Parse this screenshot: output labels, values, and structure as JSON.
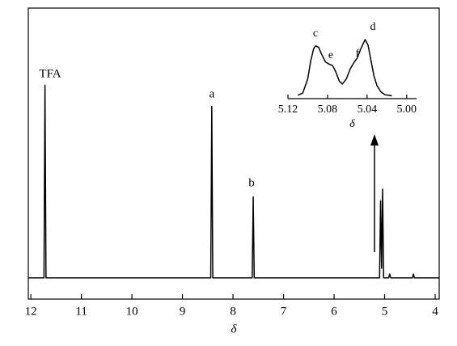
{
  "chart_data": [
    {
      "type": "line",
      "x_label": "δ",
      "x": [
        12.05,
        11.74,
        11.72,
        11.7,
        8.44,
        8.42,
        8.4,
        7.62,
        7.6,
        7.58,
        5.1,
        5.08,
        5.06,
        5.04,
        5.02,
        4.92,
        4.9,
        4.88,
        4.45,
        4.43,
        4.41,
        3.92
      ],
      "values": [
        0,
        0,
        1,
        0,
        0,
        0.89,
        0,
        0,
        0.42,
        0,
        0,
        0.4,
        0.05,
        0.46,
        0,
        0,
        0.02,
        0,
        0,
        0.02,
        0,
        0
      ],
      "color": "#000000",
      "xlim": [
        12.05,
        3.92
      ],
      "ylim": [
        -0.11,
        1.4
      ],
      "xticks": [
        12,
        11,
        10,
        9,
        8,
        7,
        6,
        5,
        4
      ],
      "annotations": [
        "TFA",
        "a",
        "b"
      ]
    },
    {
      "type": "line",
      "x_label": "δ",
      "x": [
        5.11,
        5.105,
        5.1,
        5.097,
        5.094,
        5.092,
        5.089,
        5.086,
        5.082,
        5.078,
        5.075,
        5.072,
        5.068,
        5.065,
        5.061,
        5.057,
        5.053,
        5.05,
        5.046,
        5.042,
        5.039,
        5.036,
        5.033,
        5.03,
        5.026,
        5.022,
        5.015
      ],
      "values": [
        0.01,
        0.05,
        0.3,
        0.62,
        0.84,
        0.89,
        0.86,
        0.74,
        0.6,
        0.56,
        0.54,
        0.44,
        0.26,
        0.21,
        0.3,
        0.48,
        0.6,
        0.67,
        0.85,
        1.0,
        0.9,
        0.62,
        0.35,
        0.18,
        0.07,
        0.02,
        0
      ],
      "color": "#000000",
      "xlim": [
        5.12,
        4.99
      ],
      "ylim": [
        -0.05,
        1.1
      ],
      "xticks": [
        5.12,
        {
          "value": 5.08,
          "label": "5.08"
        },
        5.04,
        {
          "value": 5,
          "label": "5.00"
        }
      ],
      "annotations": [
        "c",
        "e",
        "f",
        "d"
      ]
    }
  ]
}
